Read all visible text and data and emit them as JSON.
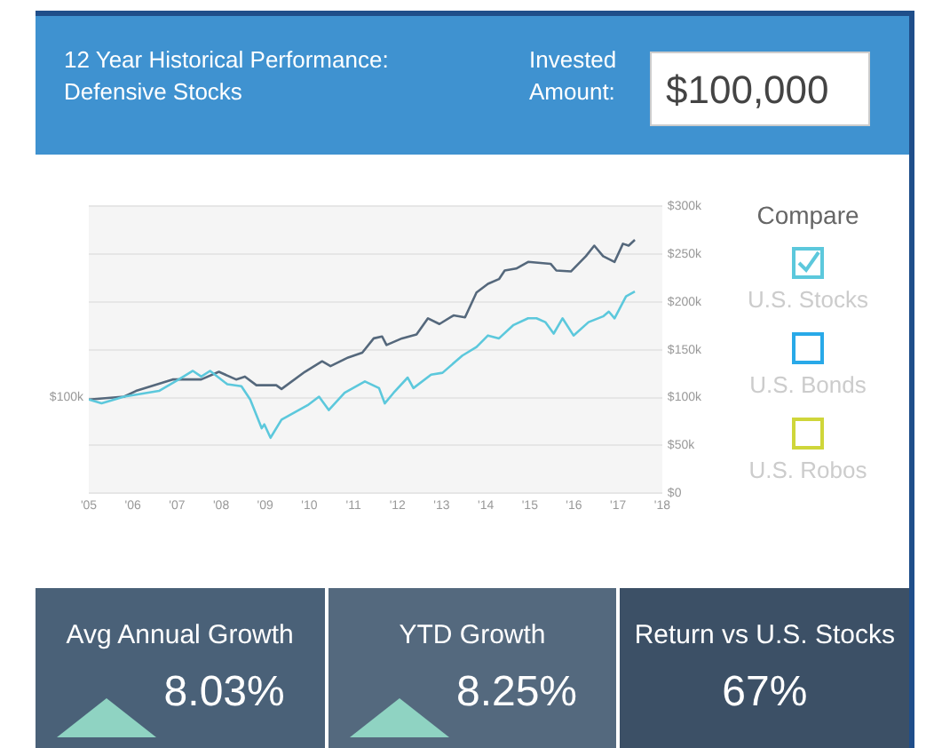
{
  "chart_data": {
    "type": "line",
    "title": "12 Year Historical Performance: Defensive Stocks",
    "legend_title": "Compare",
    "legend": "right",
    "grid": "y",
    "marker": "none",
    "line_style": "solid",
    "annotations": [
      "Invested Amount:",
      "$100,000",
      "U.S. Bonds",
      "U.S. Robos",
      "Avg Annual Growth",
      "8.03%",
      "YTD Growth",
      "8.25%",
      "Return vs U.S. Stocks",
      "67%",
      {
        "text": "$100k",
        "x": 2005,
        "y": 100000
      }
    ],
    "xlim": [
      2005,
      2018
    ],
    "xticks": [
      {
        "value": 2005,
        "label": "'05"
      },
      {
        "value": 2006,
        "label": "'06"
      },
      {
        "value": 2007,
        "label": "'07"
      },
      {
        "value": 2008,
        "label": "'08"
      },
      {
        "value": 2009,
        "label": "'09"
      },
      {
        "value": 2010,
        "label": "'10"
      },
      {
        "value": 2011,
        "label": "'11"
      },
      {
        "value": 2012,
        "label": "'12"
      },
      {
        "value": 2013,
        "label": "'13"
      },
      {
        "value": 2014,
        "label": "'14"
      },
      {
        "value": 2015,
        "label": "'15"
      },
      {
        "value": 2016,
        "label": "'16"
      },
      {
        "value": 2017,
        "label": "'17"
      },
      {
        "value": 2018,
        "label": "'18"
      }
    ],
    "ylim": [
      0,
      300000
    ],
    "yticks": [
      {
        "value": 0,
        "label": "$0"
      },
      {
        "value": 50000,
        "label": "$50k"
      },
      {
        "value": 100000,
        "label": "$100k"
      },
      {
        "value": 150000,
        "label": "$150k"
      },
      {
        "value": 200000,
        "label": "$200k"
      },
      {
        "value": 250000,
        "label": "$250k"
      },
      {
        "value": 300000,
        "label": "$300k"
      }
    ],
    "series": [
      {
        "color": "#55687c",
        "x": [
          2005.0,
          2005.8,
          2006.07,
          2006.9,
          2007.55,
          2007.95,
          2008.34,
          2008.54,
          2008.8,
          2009.25,
          2009.37,
          2009.9,
          2010.29,
          2010.48,
          2010.88,
          2011.2,
          2011.46,
          2011.65,
          2011.75,
          2012.1,
          2012.43,
          2012.69,
          2012.95,
          2013.27,
          2013.53,
          2013.79,
          2014.05,
          2014.3,
          2014.43,
          2014.69,
          2014.96,
          2015.47,
          2015.6,
          2015.93,
          2016.27,
          2016.46,
          2016.66,
          2016.92,
          2017.11,
          2017.24,
          2017.38
        ],
        "values": [
          98000,
          101000,
          107000,
          119000,
          119000,
          127000,
          119000,
          122000,
          113000,
          113000,
          109000,
          127000,
          138000,
          133000,
          142000,
          147000,
          162000,
          164000,
          155000,
          162000,
          166000,
          183000,
          177000,
          186000,
          184000,
          210000,
          219000,
          224000,
          233000,
          235000,
          242000,
          240000,
          233000,
          232000,
          248000,
          259000,
          248000,
          242000,
          261000,
          259000,
          265000
        ]
      },
      {
        "name": "U.S. Stocks",
        "color": "#5cc8dc",
        "x": [
          2005.0,
          2005.29,
          2005.8,
          2006.59,
          2007.04,
          2007.36,
          2007.55,
          2007.75,
          2008.14,
          2008.46,
          2008.66,
          2008.92,
          2008.98,
          2009.12,
          2009.37,
          2009.96,
          2010.22,
          2010.44,
          2010.8,
          2011.26,
          2011.58,
          2011.71,
          2011.91,
          2012.23,
          2012.36,
          2012.76,
          2013.02,
          2013.47,
          2013.79,
          2014.05,
          2014.3,
          2014.63,
          2014.96,
          2015.15,
          2015.35,
          2015.54,
          2015.74,
          2015.99,
          2016.33,
          2016.66,
          2016.79,
          2016.92,
          2017.18,
          2017.38
        ],
        "values": [
          98000,
          94000,
          101000,
          107000,
          119000,
          128000,
          122000,
          128000,
          114000,
          112000,
          98000,
          68000,
          72000,
          58000,
          77000,
          92000,
          101000,
          87000,
          105000,
          117000,
          110000,
          94000,
          105000,
          121000,
          110000,
          124000,
          126000,
          144000,
          153000,
          165000,
          162000,
          176000,
          183000,
          183000,
          179000,
          167000,
          183000,
          165000,
          179000,
          185000,
          190000,
          183000,
          206000,
          211000
        ]
      }
    ]
  }
}
